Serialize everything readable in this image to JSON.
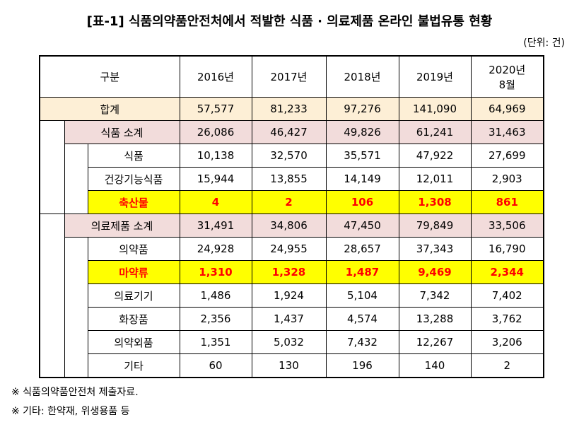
{
  "title": "[표-1] 식품의약품안전처에서 적발한 식품 · 의료제품 온라인 불법유통 현황",
  "unit": "(단위: 건)",
  "table": {
    "header": [
      "구분",
      "2016년",
      "2017년",
      "2018년",
      "2019년",
      "2020년\n8월"
    ],
    "total": {
      "label": "합계",
      "values": [
        "57,577",
        "81,233",
        "97,276",
        "141,090",
        "64,969"
      ],
      "color": "#fdefd6"
    },
    "groups": [
      {
        "subtotal": {
          "label": "식품 소계",
          "values": [
            "26,086",
            "46,427",
            "49,826",
            "61,241",
            "31,463"
          ],
          "color": "#f2dcdb"
        },
        "items": [
          {
            "label": "식품",
            "values": [
              "10,138",
              "32,570",
              "35,571",
              "47,922",
              "27,699"
            ]
          },
          {
            "label": "건강기능식품",
            "values": [
              "15,944",
              "13,855",
              "14,149",
              "12,011",
              "2,903"
            ]
          },
          {
            "label": "축산물",
            "values": [
              "4",
              "2",
              "106",
              "1,308",
              "861"
            ],
            "color": "#ffff00",
            "text_color": "#ff0000"
          }
        ]
      },
      {
        "subtotal": {
          "label": "의료제품 소계",
          "values": [
            "31,491",
            "34,806",
            "47,450",
            "79,849",
            "33,506"
          ],
          "color": "#f2dcdb"
        },
        "items": [
          {
            "label": "의약품",
            "values": [
              "24,928",
              "24,955",
              "28,657",
              "37,343",
              "16,790"
            ]
          },
          {
            "label": "마약류",
            "values": [
              "1,310",
              "1,328",
              "1,487",
              "9,469",
              "2,344"
            ],
            "color": "#ffff00",
            "text_color": "#ff0000"
          },
          {
            "label": "의료기기",
            "values": [
              "1,486",
              "1,924",
              "5,104",
              "7,342",
              "7,402"
            ]
          },
          {
            "label": "화장품",
            "values": [
              "2,356",
              "1,437",
              "4,574",
              "13,288",
              "3,762"
            ]
          },
          {
            "label": "의약외품",
            "values": [
              "1,351",
              "5,032",
              "7,432",
              "12,267",
              "3,206"
            ]
          },
          {
            "label": "기타",
            "values": [
              "60",
              "130",
              "196",
              "140",
              "2"
            ]
          }
        ]
      }
    ]
  },
  "notes": [
    "※ 식품의약품안전처 제출자료.",
    "※ 기타: 한약재, 위생용품 등"
  ]
}
